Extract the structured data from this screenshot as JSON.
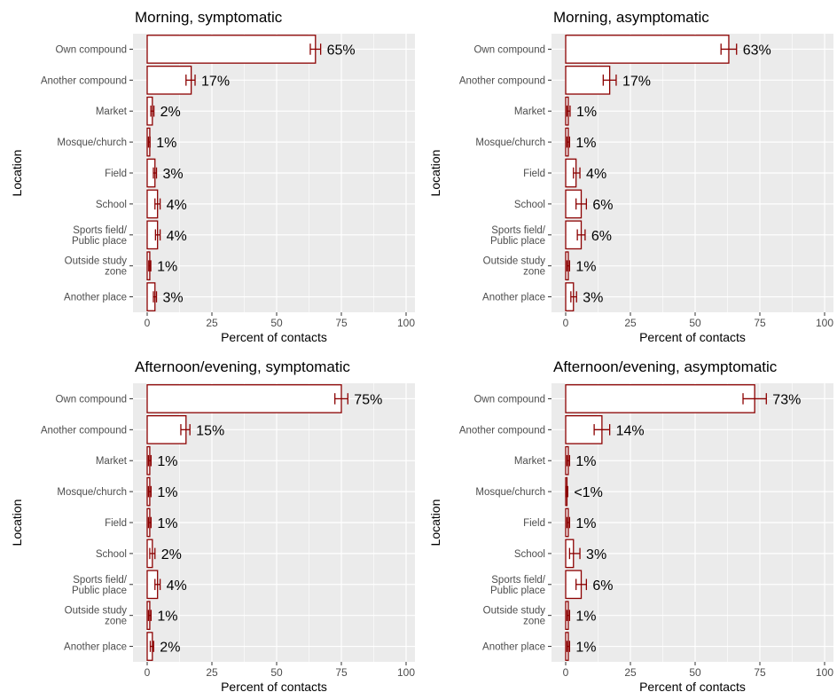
{
  "colors": {
    "panel_bg": "#ebebeb",
    "gridline": "#ffffff",
    "bar_fill": "#ffffff",
    "bar_stroke": "#8b0000",
    "errorbar": "#8b0000",
    "axis_text": "#4d4d4d",
    "label_text": "#000000"
  },
  "chart_data": [
    {
      "type": "bar",
      "orientation": "horizontal",
      "title": "Morning, symptomatic",
      "xlabel": "Percent of contacts",
      "ylabel": "Location",
      "xlim": [
        0,
        100
      ],
      "xticks": [
        0,
        25,
        50,
        75,
        100
      ],
      "grid": true,
      "categories": [
        "Own compound",
        "Another compound",
        "Market",
        "Mosque/church",
        "Field",
        "School",
        "Sports field/\nPublic place",
        "Outside study\nzone",
        "Another place"
      ],
      "values": [
        65,
        17,
        2,
        1,
        3,
        4,
        4,
        1,
        3
      ],
      "error_low": [
        63,
        15,
        1.4,
        0.5,
        2.4,
        3,
        3.2,
        0.6,
        2.4
      ],
      "error_high": [
        67,
        18.5,
        2.6,
        1.1,
        3.6,
        5,
        5,
        1.4,
        3.6
      ],
      "data_labels": [
        "65%",
        "17%",
        "2%",
        "1%",
        "3%",
        "4%",
        "4%",
        "1%",
        "3%"
      ]
    },
    {
      "type": "bar",
      "orientation": "horizontal",
      "title": "Morning, asymptomatic",
      "xlabel": "Percent of contacts",
      "ylabel": "Location",
      "xlim": [
        0,
        100
      ],
      "xticks": [
        0,
        25,
        50,
        75,
        100
      ],
      "grid": true,
      "categories": [
        "Own compound",
        "Another compound",
        "Market",
        "Mosque/church",
        "Field",
        "School",
        "Sports field/\nPublic place",
        "Outside study\nzone",
        "Another place"
      ],
      "values": [
        63,
        17,
        1,
        1,
        4,
        6,
        6,
        1,
        3
      ],
      "error_low": [
        60,
        14.5,
        0.5,
        0.5,
        3,
        4,
        4.5,
        0.5,
        2
      ],
      "error_high": [
        66,
        19.5,
        1.7,
        1.5,
        5.5,
        8,
        7.5,
        1.5,
        4.2
      ],
      "data_labels": [
        "63%",
        "17%",
        "1%",
        "1%",
        "4%",
        "6%",
        "6%",
        "1%",
        "3%"
      ]
    },
    {
      "type": "bar",
      "orientation": "horizontal",
      "title": "Afternoon/evening, symptomatic",
      "xlabel": "Percent of contacts",
      "ylabel": "Location",
      "xlim": [
        0,
        100
      ],
      "xticks": [
        0,
        25,
        50,
        75,
        100
      ],
      "grid": true,
      "categories": [
        "Own compound",
        "Another compound",
        "Market",
        "Mosque/church",
        "Field",
        "School",
        "Sports field/\nPublic place",
        "Outside study\nzone",
        "Another place"
      ],
      "values": [
        75,
        15,
        1,
        1,
        1,
        2,
        4,
        1,
        2
      ],
      "error_low": [
        72.5,
        13,
        0.5,
        0.5,
        0.5,
        1,
        3,
        0.5,
        1.2
      ],
      "error_high": [
        77.5,
        16.5,
        1.5,
        1.5,
        1.5,
        3,
        5,
        1.5,
        2.5
      ],
      "data_labels": [
        "75%",
        "15%",
        "1%",
        "1%",
        "1%",
        "2%",
        "4%",
        "1%",
        "2%"
      ]
    },
    {
      "type": "bar",
      "orientation": "horizontal",
      "title": "Afternoon/evening, asymptomatic",
      "xlabel": "Percent of contacts",
      "ylabel": "Location",
      "xlim": [
        0,
        100
      ],
      "xticks": [
        0,
        25,
        50,
        75,
        100
      ],
      "grid": true,
      "categories": [
        "Own compound",
        "Another compound",
        "Market",
        "Mosque/church",
        "Field",
        "School",
        "Sports field/\nPublic place",
        "Outside study\nzone",
        "Another place"
      ],
      "values": [
        73,
        14,
        1,
        0.5,
        1,
        3,
        6,
        1,
        1
      ],
      "error_low": [
        68.5,
        11,
        0.5,
        0.2,
        0.5,
        1.5,
        4,
        0.5,
        0.5
      ],
      "error_high": [
        77.5,
        17,
        1.5,
        0.8,
        1.5,
        5.5,
        8,
        1.5,
        1.5
      ],
      "data_labels": [
        "73%",
        "14%",
        "1%",
        "<1%",
        "1%",
        "3%",
        "6%",
        "1%",
        "1%"
      ]
    }
  ]
}
